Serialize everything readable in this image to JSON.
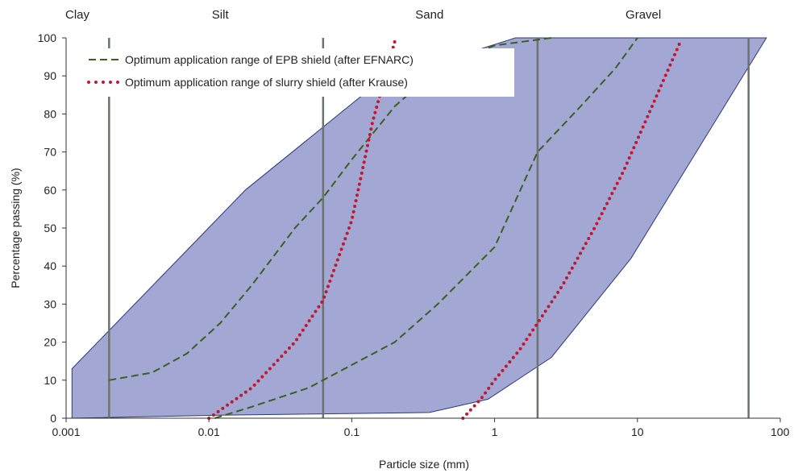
{
  "chart_data": {
    "type": "line",
    "xlabel": "Particle size (mm)",
    "ylabel": "Percentage passing (%)",
    "x_scale": "log",
    "xlim": [
      0.001,
      100
    ],
    "ylim": [
      0,
      100
    ],
    "x_ticks": [
      0.001,
      0.01,
      0.1,
      1,
      10,
      100
    ],
    "x_tick_labels": [
      "0.001",
      "0.01",
      "0.1",
      "1",
      "10",
      "100"
    ],
    "y_ticks": [
      0,
      10,
      20,
      30,
      40,
      50,
      60,
      70,
      80,
      90,
      100
    ],
    "y_tick_labels": [
      "0",
      "10",
      "20",
      "30",
      "40",
      "50",
      "60",
      "70",
      "80",
      "90",
      "100"
    ],
    "grid": false,
    "legend_position": "top-left",
    "soil_zones": [
      {
        "label": "Clay",
        "center": 0.0012
      },
      {
        "label": "Silt",
        "center": 0.012
      },
      {
        "label": "Sand",
        "center": 0.35
      },
      {
        "label": "Gravel",
        "center": 11
      }
    ],
    "zone_boundaries": [
      0.002,
      0.063,
      2,
      60
    ],
    "envelope": {
      "color": "#a3a7d4",
      "edge_color": "#2b3a7a",
      "points": [
        [
          0.0011,
          0
        ],
        [
          0.0011,
          13
        ],
        [
          0.018,
          60
        ],
        [
          0.15,
          88
        ],
        [
          0.2,
          90
        ],
        [
          1.4,
          100
        ],
        [
          80,
          100
        ],
        [
          9,
          42
        ],
        [
          2.5,
          16
        ],
        [
          0.9,
          5
        ],
        [
          0.35,
          1.5
        ],
        [
          0.012,
          0.8
        ],
        [
          0.0011,
          0
        ]
      ]
    },
    "series": [
      {
        "name": "Optimum application range of EPB shield (after EFNARC)",
        "style": "dashed",
        "color": "#3a5f1f",
        "curves": [
          [
            [
              0.002,
              10
            ],
            [
              0.004,
              12
            ],
            [
              0.007,
              17
            ],
            [
              0.012,
              25
            ],
            [
              0.02,
              35
            ],
            [
              0.04,
              50
            ],
            [
              0.063,
              58
            ],
            [
              0.1,
              68
            ],
            [
              0.2,
              82
            ],
            [
              0.4,
              92
            ],
            [
              1,
              98
            ],
            [
              2.5,
              100
            ]
          ],
          [
            [
              0.011,
              0
            ],
            [
              0.02,
              3
            ],
            [
              0.05,
              8
            ],
            [
              0.1,
              14
            ],
            [
              0.2,
              20
            ],
            [
              0.4,
              30
            ],
            [
              1,
              45
            ],
            [
              2,
              70
            ],
            [
              4,
              82
            ],
            [
              7,
              92
            ],
            [
              10,
              100
            ]
          ]
        ]
      },
      {
        "name": "Optimum application range of slurry shield (after Krause)",
        "style": "dotted",
        "color": "#c0182f",
        "curves": [
          [
            [
              0.01,
              0
            ],
            [
              0.02,
              8
            ],
            [
              0.04,
              20
            ],
            [
              0.063,
              31
            ],
            [
              0.1,
              52
            ],
            [
              0.14,
              78
            ],
            [
              0.2,
              99
            ]
          ],
          [
            [
              0.6,
              0
            ],
            [
              0.8,
              5
            ],
            [
              1,
              10
            ],
            [
              1.5,
              18
            ],
            [
              2,
              25
            ],
            [
              3,
              35
            ],
            [
              5,
              50
            ],
            [
              8,
              65
            ],
            [
              12,
              80
            ],
            [
              20,
              99
            ]
          ]
        ]
      }
    ]
  }
}
